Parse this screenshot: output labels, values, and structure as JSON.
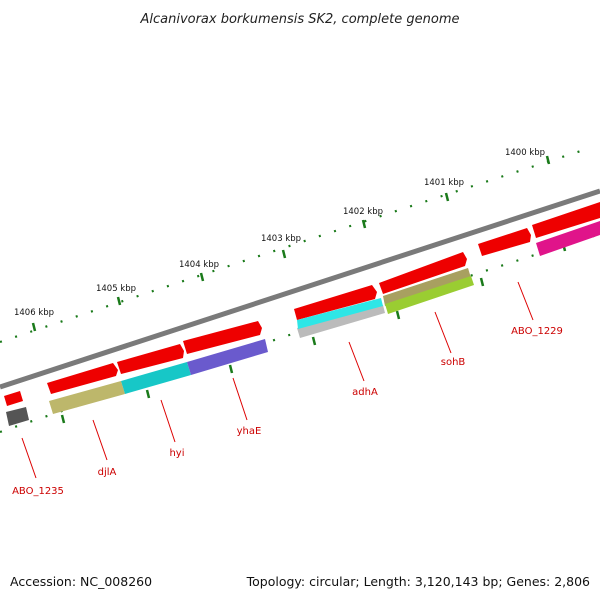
{
  "title": "Alcanivorax borkumensis SK2, complete genome",
  "footer": {
    "accession": "Accession: NC_008260",
    "summary": "Topology: circular; Length: 3,120,143 bp; Genes: 2,806"
  },
  "colors": {
    "backbone": "#7a7a7a",
    "tick": "#1a7a1a",
    "label": "#cc0000",
    "leader": "#dd0000"
  },
  "kbp_labels": [
    "1400 kbp",
    "1401 kbp",
    "1402 kbp",
    "1403 kbp",
    "1404 kbp",
    "1405 kbp",
    "1406 kbp"
  ],
  "gene_labels": [
    "ABO_1229",
    "sohB",
    "adhA",
    "yhaE",
    "hyi",
    "djlA",
    "ABO_1235"
  ],
  "genes_outer": [
    {
      "color": "#ee0000"
    },
    {
      "color": "#ee0000"
    },
    {
      "color": "#ee0000"
    },
    {
      "color": "#ee0000"
    },
    {
      "color": "#ee0000"
    },
    {
      "color": "#ee0000"
    },
    {
      "color": "#ee0000"
    },
    {
      "color": "#ee0000"
    }
  ],
  "genes_inner": [
    {
      "color": "#555555"
    },
    {
      "color": "#bdb76b"
    },
    {
      "color": "#17c7c7"
    },
    {
      "color": "#6a5acd"
    },
    {
      "color": "#bbbbbb"
    },
    {
      "color": "#2ee6e6"
    },
    {
      "color": "#a8a060"
    },
    {
      "color": "#9acd32"
    },
    {
      "color": "#e0148a"
    }
  ]
}
